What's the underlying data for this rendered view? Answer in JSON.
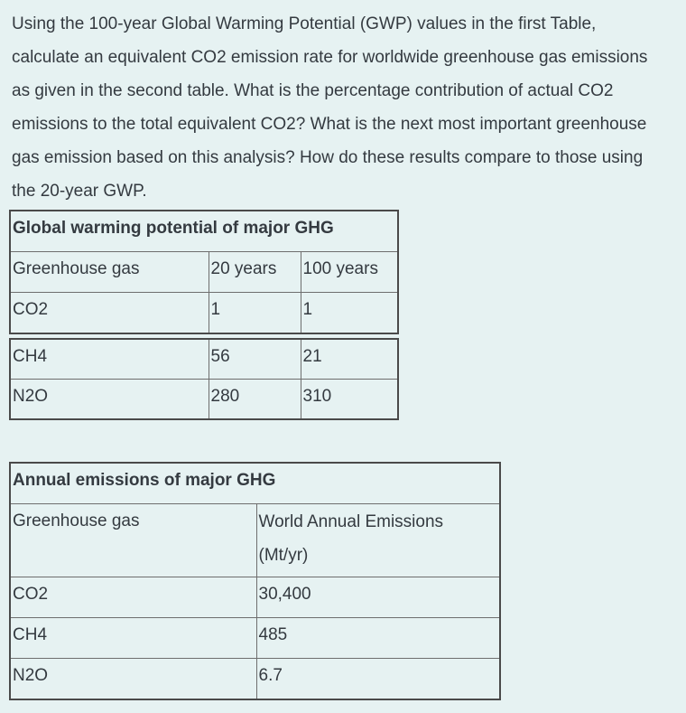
{
  "page": {
    "background_color": "#e6f2f2",
    "text_color": "#343a40",
    "border_color_outer": "#4a4a4a",
    "border_color_inner": "#6e6e6e"
  },
  "question": {
    "lines": [
      "Using the 100-year Global Warming Potential (GWP) values in the first Table,",
      "calculate an equivalent CO2 emission rate for worldwide greenhouse gas emissions",
      "as given in the second table. What is the percentage contribution of actual CO2",
      "emissions to the total equivalent CO2? What is the next most important greenhouse",
      "gas emission based on this analysis? How do these results compare to those using",
      "the 20-year GWP."
    ]
  },
  "gwp_table": {
    "title": "Global warming potential of major GHG",
    "headers": [
      "Greenhouse gas",
      "20 years",
      "100 years"
    ],
    "main_rows": [
      [
        "CO2",
        "1",
        "1"
      ]
    ],
    "continued_rows": [
      [
        "CH4",
        "56",
        "21"
      ],
      [
        "N2O",
        "280",
        "310"
      ]
    ]
  },
  "emissions_table": {
    "title": "Annual emissions of major GHG",
    "header_gas": "Greenhouse gas",
    "header_emissions_line1": "World Annual Emissions",
    "header_emissions_line2": "(Mt/yr)",
    "rows": [
      [
        "CO2",
        "30,400"
      ],
      [
        "CH4",
        "485"
      ],
      [
        "N2O",
        "6.7"
      ]
    ]
  }
}
